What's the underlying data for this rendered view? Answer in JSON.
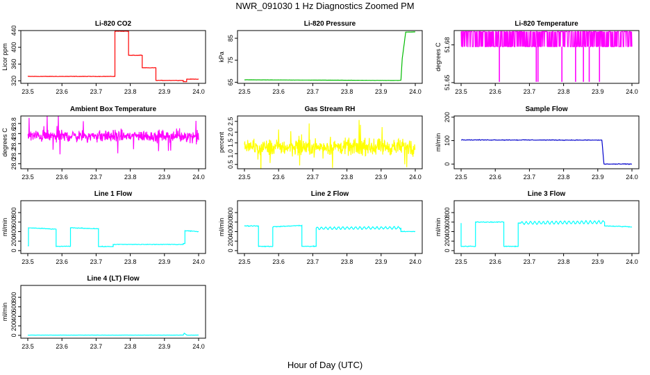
{
  "figure": {
    "title": "NWR_091030  1 Hz Diagnostics Zoomed PM",
    "xlabel": "Hour of Day (UTC)"
  },
  "chart_data": [
    {
      "type": "line",
      "title": "Li-820 CO2",
      "ylabel": "Licor ppm",
      "color": "#ff0000",
      "xlim": [
        23.5,
        24.0
      ],
      "xticks": [
        "23.5",
        "23.6",
        "23.7",
        "23.8",
        "23.9",
        "24.0"
      ],
      "ylim": [
        314,
        440
      ],
      "yticks": [
        {
          "v": 320,
          "t": "320"
        },
        {
          "v": 360,
          "t": "360"
        },
        {
          "v": 400,
          "t": "400"
        },
        {
          "v": 440,
          "t": "440"
        }
      ],
      "series": [
        {
          "name": "CO2",
          "style": "step",
          "noise": 0.7,
          "x": [
            23.5,
            23.755,
            23.755,
            23.795,
            23.795,
            23.835,
            23.835,
            23.875,
            23.875,
            23.955,
            23.955,
            23.965,
            23.965,
            24.0
          ],
          "y": [
            330.5,
            330.5,
            438.5,
            438.5,
            381,
            381,
            351,
            351,
            321,
            321,
            318,
            318,
            324,
            324
          ]
        }
      ]
    },
    {
      "type": "line",
      "title": "Li-820 Pressure",
      "ylabel": "kPa",
      "color": "#00bb00",
      "xlim": [
        23.5,
        24.0
      ],
      "xticks": [
        "23.5",
        "23.6",
        "23.7",
        "23.8",
        "23.9",
        "24.0"
      ],
      "ylim": [
        64.5,
        88.5
      ],
      "yticks": [
        {
          "v": 65,
          "t": "65"
        },
        {
          "v": 75,
          "t": "75"
        },
        {
          "v": 85,
          "t": "85"
        }
      ],
      "series": [
        {
          "name": "Pressure",
          "style": "line",
          "noise": 0.05,
          "x": [
            23.5,
            23.95,
            23.958,
            23.962,
            23.968,
            23.972,
            24.0
          ],
          "y": [
            66.1,
            65.8,
            65.9,
            76,
            83,
            87.8,
            87.9
          ]
        }
      ]
    },
    {
      "type": "line",
      "title": "Li-820 Temperature",
      "ylabel": "degrees C",
      "color": "#ff00ff",
      "xlim": [
        23.5,
        24.0
      ],
      "xticks": [
        "23.5",
        "23.6",
        "23.7",
        "23.8",
        "23.9",
        "24.0"
      ],
      "ylim": [
        51.6495,
        51.6845
      ],
      "yticks": [
        {
          "v": 51.65,
          "t": "51.65"
        },
        {
          "v": 51.675,
          "t": "51.68"
        }
      ],
      "series": [
        {
          "name": "Temperature",
          "style": "binary",
          "low": 51.6738,
          "high": 51.6838,
          "dips": [
            23.612,
            23.72,
            23.725,
            23.795,
            23.835,
            23.858,
            23.875,
            23.905
          ],
          "dip_value": 51.6505,
          "x": [
            23.5,
            24.0
          ]
        }
      ]
    },
    {
      "type": "line",
      "title": "Ambient Box Temperature",
      "ylabel": "degrees C",
      "color": "#ff00ff",
      "xlim": [
        23.5,
        24.0
      ],
      "xticks": [
        "23.5",
        "23.6",
        "23.7",
        "23.8",
        "23.9",
        "24.0"
      ],
      "ylim": [
        27.9,
        28.95
      ],
      "yticks": [
        {
          "v": 28.0,
          "t": "28.0"
        },
        {
          "v": 28.2,
          "t": "28.2"
        },
        {
          "v": 28.4,
          "t": "28.4"
        },
        {
          "v": 28.6,
          "t": "28.6"
        },
        {
          "v": 28.8,
          "t": "28.8"
        }
      ],
      "series": [
        {
          "name": "Box Temp",
          "style": "noise",
          "noise": 0.17,
          "spike": 0.35,
          "x": [
            23.5,
            24.0
          ],
          "y": [
            28.55,
            28.55
          ]
        }
      ]
    },
    {
      "type": "line",
      "title": "Gas Stream RH",
      "ylabel": "percent",
      "color": "#ffff00",
      "xlim": [
        23.5,
        24.0
      ],
      "xticks": [
        "23.5",
        "23.6",
        "23.7",
        "23.8",
        "23.9",
        "24.0"
      ],
      "ylim": [
        0.3,
        2.75
      ],
      "yticks": [
        {
          "v": 0.5,
          "t": "0.5"
        },
        {
          "v": 1.0,
          "t": "1.0"
        },
        {
          "v": 1.5,
          "t": "1.5"
        },
        {
          "v": 2.0,
          "t": "2.0"
        },
        {
          "v": 2.5,
          "t": "2.5"
        }
      ],
      "series": [
        {
          "name": "RH",
          "style": "noise",
          "noise": 0.55,
          "spike": 1.1,
          "x": [
            23.5,
            24.0
          ],
          "y": [
            1.3,
            1.3
          ]
        }
      ]
    },
    {
      "type": "line",
      "title": "Sample Flow",
      "ylabel": "ml/min",
      "color": "#0000cc",
      "xlim": [
        23.5,
        24.0
      ],
      "xticks": [
        "23.5",
        "23.6",
        "23.7",
        "23.8",
        "23.9",
        "24.0"
      ],
      "ylim": [
        -20,
        205
      ],
      "yticks": [
        {
          "v": 0,
          "t": "0"
        },
        {
          "v": 100,
          "t": "100"
        },
        {
          "v": 200,
          "t": "200"
        }
      ],
      "series": [
        {
          "name": "Sample Flow",
          "style": "line",
          "noise": 2,
          "x": [
            23.5,
            23.912,
            23.918,
            24.0
          ],
          "y": [
            103,
            102,
            0,
            0
          ]
        }
      ]
    },
    {
      "type": "line",
      "title": "Line 1 Flow",
      "ylabel": "ml/min",
      "color": "#00ffff",
      "xlim": [
        23.5,
        24.0
      ],
      "xticks": [
        "23.5",
        "23.6",
        "23.7",
        "23.8",
        "23.9",
        "24.0"
      ],
      "ylim": [
        -60,
        1050
      ],
      "yticks": [
        {
          "v": 0,
          "t": "0"
        },
        {
          "v": 200,
          "t": "200"
        },
        {
          "v": 400,
          "t": "400"
        },
        {
          "v": 600,
          "t": "600"
        },
        {
          "v": 800,
          "t": "800"
        }
      ],
      "series": [
        {
          "name": "Line 1",
          "style": "step",
          "noise": 10,
          "x": [
            23.5,
            23.502,
            23.502,
            23.583,
            23.583,
            23.625,
            23.625,
            23.707,
            23.707,
            23.75,
            23.75,
            23.955,
            23.955,
            23.96,
            23.96,
            24.0
          ],
          "y": [
            100,
            100,
            480,
            450,
            90,
            90,
            480,
            460,
            85,
            85,
            130,
            130,
            150,
            150,
            420,
            400
          ]
        }
      ]
    },
    {
      "type": "line",
      "title": "Line 2 Flow",
      "ylabel": "ml/min",
      "color": "#00ffff",
      "xlim": [
        23.5,
        24.0
      ],
      "xticks": [
        "23.5",
        "23.6",
        "23.7",
        "23.8",
        "23.9",
        "24.0"
      ],
      "ylim": [
        -60,
        1050
      ],
      "yticks": [
        {
          "v": 0,
          "t": "0"
        },
        {
          "v": 200,
          "t": "200"
        },
        {
          "v": 400,
          "t": "400"
        },
        {
          "v": 600,
          "t": "600"
        },
        {
          "v": 800,
          "t": "800"
        }
      ],
      "series": [
        {
          "name": "Line 2",
          "style": "step",
          "noise": 12,
          "wave_from": 23.71,
          "wave_amp": 25,
          "x": [
            23.5,
            23.541,
            23.541,
            23.583,
            23.583,
            23.668,
            23.668,
            23.71,
            23.71,
            23.958,
            23.958,
            24.0
          ],
          "y": [
            520,
            520,
            90,
            90,
            500,
            530,
            90,
            90,
            470,
            480,
            400,
            400
          ]
        }
      ]
    },
    {
      "type": "line",
      "title": "Line 3 Flow",
      "ylabel": "ml/min",
      "color": "#00ffff",
      "xlim": [
        23.5,
        24.0
      ],
      "xticks": [
        "23.5",
        "23.6",
        "23.7",
        "23.8",
        "23.9",
        "24.0"
      ],
      "ylim": [
        -60,
        1050
      ],
      "yticks": [
        {
          "v": 0,
          "t": "0"
        },
        {
          "v": 200,
          "t": "200"
        },
        {
          "v": 400,
          "t": "400"
        },
        {
          "v": 600,
          "t": "600"
        },
        {
          "v": 800,
          "t": "800"
        }
      ],
      "series": [
        {
          "name": "Line 3",
          "style": "step",
          "noise": 12,
          "wave_from": 23.675,
          "wave_amp": 30,
          "x": [
            23.5,
            23.5,
            23.542,
            23.542,
            23.625,
            23.625,
            23.667,
            23.667,
            23.92,
            23.92,
            24.0
          ],
          "y": [
            580,
            90,
            90,
            600,
            600,
            90,
            90,
            580,
            600,
            520,
            500
          ]
        }
      ]
    },
    {
      "type": "line",
      "title": "Line 4 (LT) Flow",
      "ylabel": "ml/min",
      "color": "#00ffff",
      "xlim": [
        23.5,
        24.0
      ],
      "xticks": [
        "23.5",
        "23.6",
        "23.7",
        "23.8",
        "23.9",
        "24.0"
      ],
      "ylim": [
        -60,
        1050
      ],
      "yticks": [
        {
          "v": 0,
          "t": "0"
        },
        {
          "v": 200,
          "t": "200"
        },
        {
          "v": 400,
          "t": "400"
        },
        {
          "v": 600,
          "t": "600"
        },
        {
          "v": 800,
          "t": "800"
        }
      ],
      "series": [
        {
          "name": "Line 4",
          "style": "line",
          "noise": 2,
          "x": [
            23.5,
            23.955,
            23.958,
            23.962,
            23.965,
            24.0
          ],
          "y": [
            5,
            5,
            45,
            25,
            5,
            5
          ]
        }
      ]
    }
  ]
}
